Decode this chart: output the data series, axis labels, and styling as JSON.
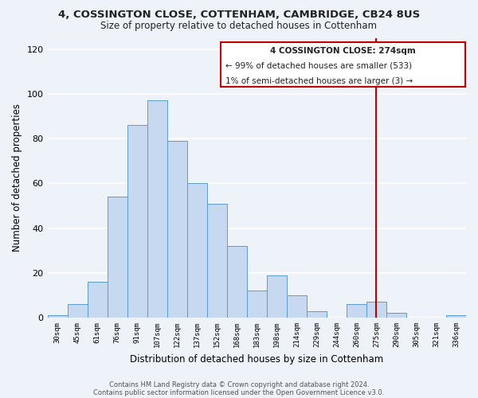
{
  "title": "4, COSSINGTON CLOSE, COTTENHAM, CAMBRIDGE, CB24 8US",
  "subtitle": "Size of property relative to detached houses in Cottenham",
  "xlabel": "Distribution of detached houses by size in Cottenham",
  "ylabel": "Number of detached properties",
  "bar_labels": [
    "30sqm",
    "45sqm",
    "61sqm",
    "76sqm",
    "91sqm",
    "107sqm",
    "122sqm",
    "137sqm",
    "152sqm",
    "168sqm",
    "183sqm",
    "198sqm",
    "214sqm",
    "229sqm",
    "244sqm",
    "260sqm",
    "275sqm",
    "290sqm",
    "305sqm",
    "321sqm",
    "336sqm"
  ],
  "bar_values": [
    1,
    6,
    16,
    54,
    86,
    97,
    79,
    60,
    51,
    32,
    12,
    19,
    10,
    3,
    0,
    6,
    7,
    2,
    0,
    0,
    1
  ],
  "bar_color": "#c6d9f0",
  "bar_edge_color": "#5b9bd5",
  "vline_index": 16,
  "vline_color": "#c00000",
  "ylim": [
    0,
    125
  ],
  "yticks": [
    0,
    20,
    40,
    60,
    80,
    100,
    120
  ],
  "annotation_title": "4 COSSINGTON CLOSE: 274sqm",
  "annotation_line1": "← 99% of detached houses are smaller (533)",
  "annotation_line2": "1% of semi-detached houses are larger (3) →",
  "footer1": "Contains HM Land Registry data © Crown copyright and database right 2024.",
  "footer2": "Contains public sector information licensed under the Open Government Licence v3.0.",
  "bg_color": "#eef2f9",
  "grid_color": "#ffffff"
}
